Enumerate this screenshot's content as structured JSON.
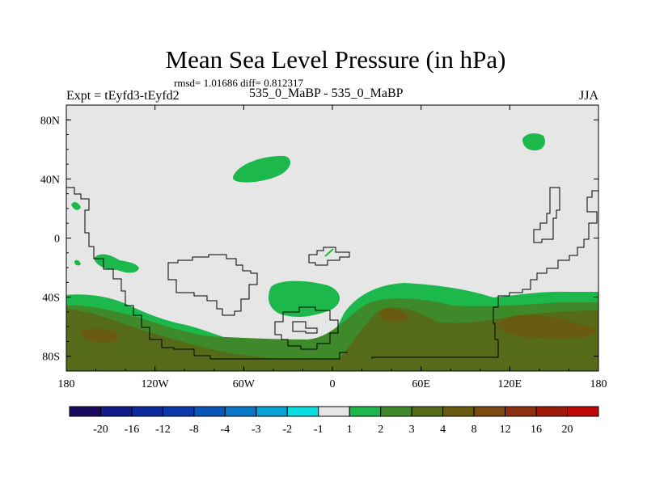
{
  "header": {
    "title": "Mean Sea Level Pressure (in hPa)",
    "stats": "rmsd= 1.01686 diff= 0.812317",
    "left_label": "Expt = tEyfd3-tEyfd2",
    "center_label": "535_0_MaBP - 535_0_MaBP",
    "right_label": "JJA"
  },
  "chart_data": {
    "type": "heatmap",
    "title": "Mean Sea Level Pressure (in hPa)",
    "xlabel": "",
    "ylabel": "",
    "xlim": [
      -180,
      180
    ],
    "ylim": [
      -90,
      90
    ],
    "x_ticks": [
      {
        "value": -180,
        "label": "180"
      },
      {
        "value": -120,
        "label": "120W"
      },
      {
        "value": -60,
        "label": "60W"
      },
      {
        "value": 0,
        "label": "0"
      },
      {
        "value": 60,
        "label": "60E"
      },
      {
        "value": 120,
        "label": "120E"
      },
      {
        "value": 180,
        "label": "180"
      }
    ],
    "y_ticks": [
      {
        "value": 80,
        "label": "80N"
      },
      {
        "value": 40,
        "label": "40N"
      },
      {
        "value": 0,
        "label": "0"
      },
      {
        "value": -40,
        "label": "40S"
      },
      {
        "value": -80,
        "label": "80S"
      }
    ],
    "colorbar": {
      "labels": [
        "-20",
        "-16",
        "-12",
        "-8",
        "-4",
        "-3",
        "-2",
        "-1",
        "1",
        "2",
        "3",
        "4",
        "8",
        "12",
        "16",
        "20"
      ],
      "colors": [
        "#1a0a5e",
        "#101a8a",
        "#0a2a9e",
        "#0a3aaa",
        "#0a55b8",
        "#0a78c8",
        "#0aa0d8",
        "#0adde0",
        "#e6e6e6",
        "#1db84b",
        "#3e8a2a",
        "#556b1a",
        "#6a5a10",
        "#7a4a10",
        "#8c3010",
        "#a01a0a",
        "#c00a0a"
      ]
    },
    "background_level_color": "#e6e6e6",
    "regions": [
      {
        "level": "1 to 2",
        "color": "#1db84b",
        "area": "Southern Hemisphere mid-latitudes 40S-80S, North Pacific 40N-55N, Arctic near 140E"
      },
      {
        "level": "2 to 3",
        "color": "#3e8a2a",
        "area": "Southern Ocean 50S-90S"
      },
      {
        "level": "3 to 4",
        "color": "#556b1a",
        "area": "Southern polar band 55S-80S"
      },
      {
        "level": "4 to 8",
        "color": "#6a5a10",
        "area": "patches near 60S-70S at 150W and 120E-160E"
      }
    ]
  }
}
